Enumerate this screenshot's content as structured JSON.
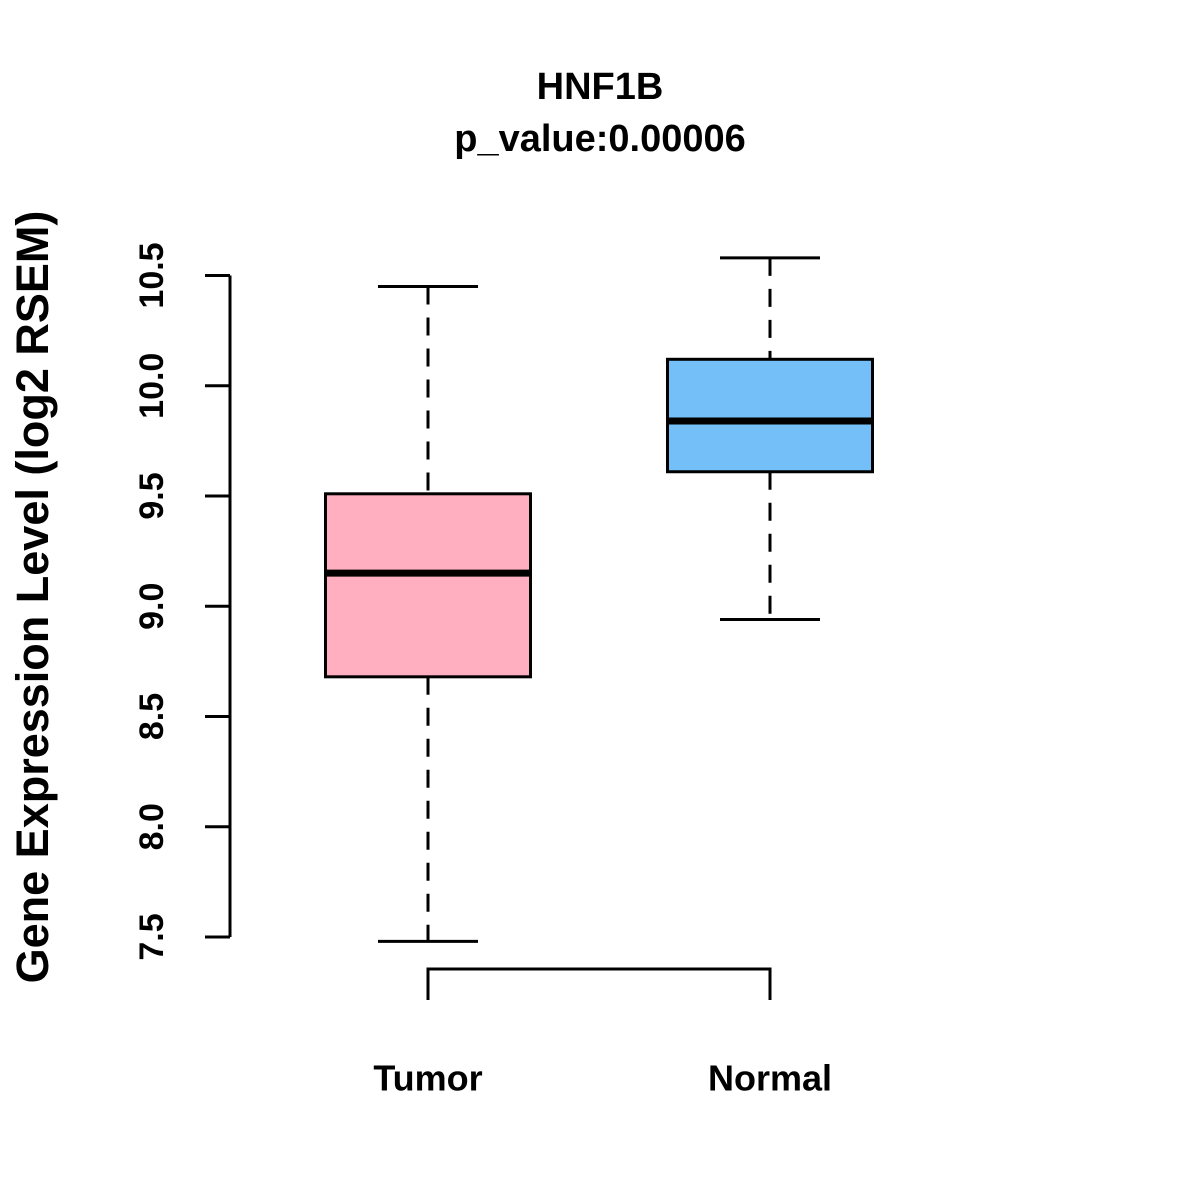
{
  "chart_data": {
    "type": "boxplot",
    "title": "HNF1B",
    "subtitle": "p_value:0.00006",
    "ylabel": "Gene Expression Level (log2 RSEM)",
    "xlabel": "",
    "categories": [
      "Tumor",
      "Normal"
    ],
    "series": [
      {
        "name": "Tumor",
        "color": "#FFAFC0",
        "min": 7.48,
        "q1": 8.68,
        "median": 9.15,
        "q3": 9.51,
        "max": 10.45
      },
      {
        "name": "Normal",
        "color": "#74BFF7",
        "min": 8.94,
        "q1": 9.61,
        "median": 9.84,
        "q3": 10.12,
        "max": 10.58
      }
    ],
    "ylim": [
      7.5,
      10.5
    ],
    "yticks": [
      7.5,
      8.0,
      8.5,
      9.0,
      9.5,
      10.0,
      10.5
    ],
    "axis_color": "#000000",
    "background": "#FFFFFF",
    "legend": "none",
    "grid": "off"
  }
}
